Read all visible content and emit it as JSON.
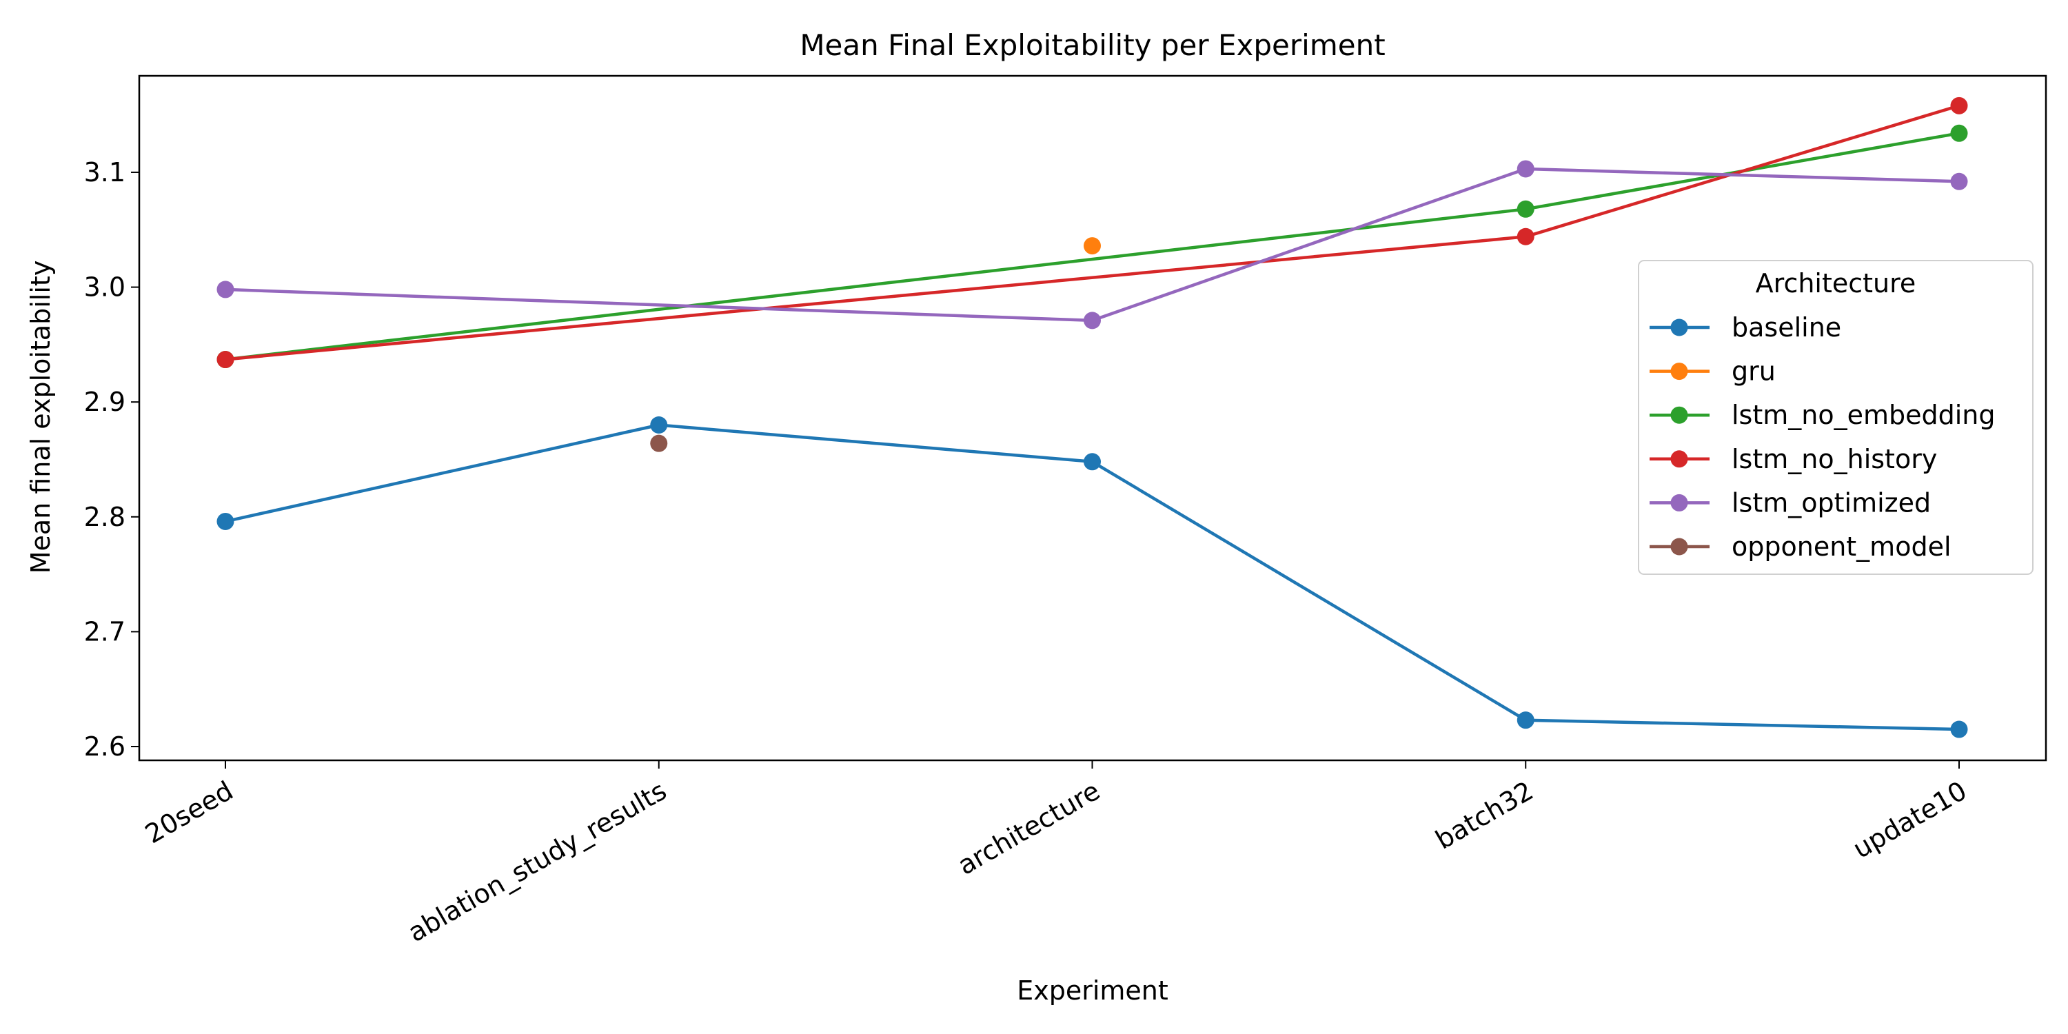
{
  "chart_data": {
    "type": "line",
    "title": "Mean Final Exploitability per Experiment",
    "xlabel": "Experiment",
    "ylabel": "Mean final exploitability",
    "categories": [
      "20seed",
      "ablation_study_results",
      "architecture",
      "batch32",
      "update10"
    ],
    "yticks": [
      "2.6",
      "2.7",
      "2.8",
      "2.9",
      "3.0",
      "3.1"
    ],
    "ylim": [
      2.588,
      3.184
    ],
    "grid": false,
    "legend": {
      "title": "Architecture",
      "placement": "center-right"
    },
    "series": [
      {
        "name": "baseline",
        "color": "#1f77b4",
        "values": [
          2.796,
          2.88,
          2.848,
          2.623,
          2.615
        ]
      },
      {
        "name": "gru",
        "color": "#ff7f0e",
        "values": [
          null,
          null,
          3.036,
          null,
          null
        ]
      },
      {
        "name": "lstm_no_embedding",
        "color": "#2ca02c",
        "values": [
          2.937,
          null,
          null,
          3.068,
          3.134
        ]
      },
      {
        "name": "lstm_no_history",
        "color": "#d62728",
        "values": [
          2.937,
          null,
          null,
          3.044,
          3.158
        ]
      },
      {
        "name": "lstm_optimized",
        "color": "#9467bd",
        "values": [
          2.998,
          null,
          2.971,
          3.103,
          3.092
        ]
      },
      {
        "name": "opponent_model",
        "color": "#8c564b",
        "values": [
          null,
          2.864,
          null,
          null,
          null
        ]
      }
    ]
  }
}
